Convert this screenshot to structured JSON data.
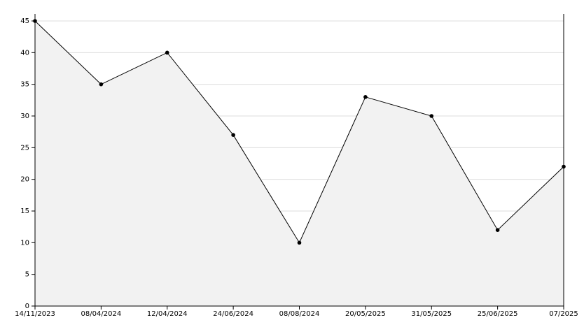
{
  "chart_data": {
    "type": "area",
    "categories": [
      "14/11/2023",
      "08/04/2024",
      "12/04/2024",
      "24/06/2024",
      "08/08/2024",
      "20/05/2025",
      "31/05/2025",
      "25/06/2025",
      "07/2025"
    ],
    "values": [
      45,
      35,
      40,
      27,
      10,
      33,
      30,
      12,
      22
    ],
    "color": "#000000",
    "fill_color": "#f2f2f2",
    "ylim": [
      0,
      45
    ],
    "yticks": [
      0,
      5,
      10,
      15,
      20,
      25,
      30,
      35,
      40,
      45
    ],
    "grid": true
  }
}
